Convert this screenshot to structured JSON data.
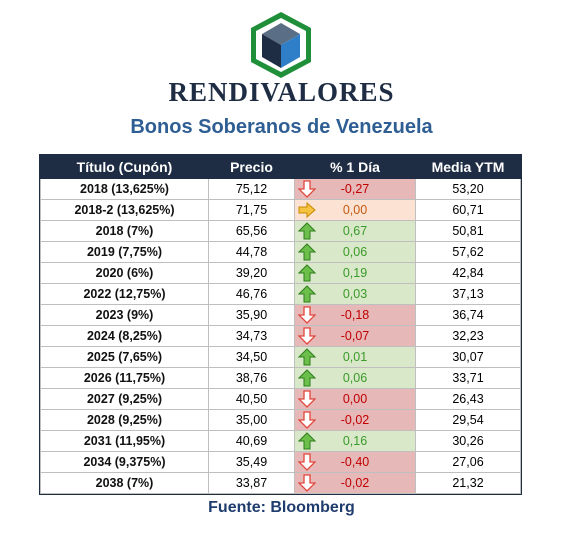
{
  "header": {
    "brand": "RENDIVALORES",
    "subtitle": "Bonos Soberanos de Venezuela"
  },
  "table": {
    "columns": [
      "Título (Cupón)",
      "Precio",
      "% 1 Día",
      "Media YTM"
    ],
    "rows": [
      {
        "title": "2018 (13,625%)",
        "price": "75,12",
        "change": "-0,27",
        "trend": "down",
        "ytm": "53,20"
      },
      {
        "title": "2018-2 (13,625%)",
        "price": "71,75",
        "change": "0,00",
        "trend": "flat",
        "ytm": "60,71"
      },
      {
        "title": "2018 (7%)",
        "price": "65,56",
        "change": "0,67",
        "trend": "up",
        "ytm": "50,81"
      },
      {
        "title": "2019 (7,75%)",
        "price": "44,78",
        "change": "0,06",
        "trend": "up",
        "ytm": "57,62"
      },
      {
        "title": "2020 (6%)",
        "price": "39,20",
        "change": "0,19",
        "trend": "up",
        "ytm": "42,84"
      },
      {
        "title": "2022 (12,75%)",
        "price": "46,76",
        "change": "0,03",
        "trend": "up",
        "ytm": "37,13"
      },
      {
        "title": "2023 (9%)",
        "price": "35,90",
        "change": "-0,18",
        "trend": "down",
        "ytm": "36,74"
      },
      {
        "title": "2024 (8,25%)",
        "price": "34,73",
        "change": "-0,07",
        "trend": "down",
        "ytm": "32,23"
      },
      {
        "title": "2025 (7,65%)",
        "price": "34,50",
        "change": "0,01",
        "trend": "up",
        "ytm": "30,07"
      },
      {
        "title": "2026 (11,75%)",
        "price": "38,76",
        "change": "0,06",
        "trend": "up",
        "ytm": "33,71"
      },
      {
        "title": "2027 (9,25%)",
        "price": "40,50",
        "change": "0,00",
        "trend": "down",
        "ytm": "26,43"
      },
      {
        "title": "2028 (9,25%)",
        "price": "35,00",
        "change": "-0,02",
        "trend": "down",
        "ytm": "29,54"
      },
      {
        "title": "2031 (11,95%)",
        "price": "40,69",
        "change": "0,16",
        "trend": "up",
        "ytm": "30,26"
      },
      {
        "title": "2034 (9,375%)",
        "price": "35,49",
        "change": "-0,40",
        "trend": "down",
        "ytm": "27,06"
      },
      {
        "title": "2038 (7%)",
        "price": "33,87",
        "change": "-0,02",
        "trend": "down",
        "ytm": "21,32"
      }
    ]
  },
  "footer": {
    "source": "Fuente: Bloomberg"
  },
  "icons": {
    "down": "red-down-arrow-icon",
    "up": "green-up-arrow-icon",
    "flat": "orange-right-arrow-icon"
  },
  "colors": {
    "header_bg": "#1f2d44",
    "subtitle": "#2e5e93",
    "down_bg": "#e6b8b8",
    "down_text": "#c00000",
    "up_bg": "#d8e8c8",
    "up_text": "#3a9a2a",
    "flat_bg": "#fbe2d3",
    "flat_text": "#c55a11"
  }
}
